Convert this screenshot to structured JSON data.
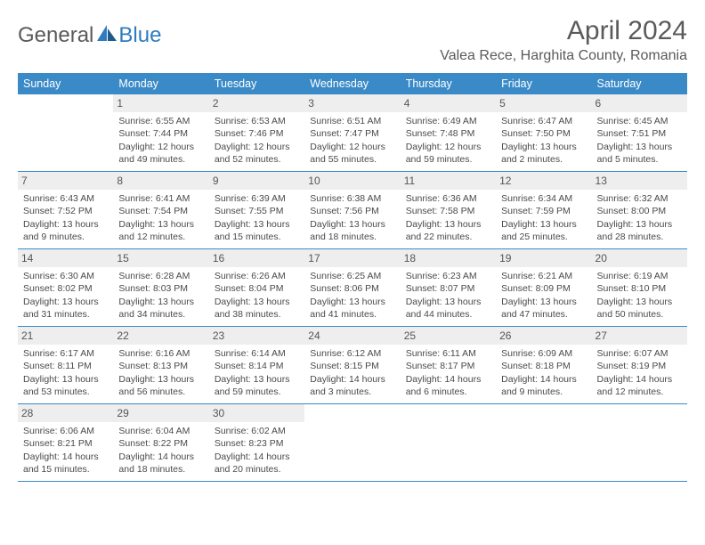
{
  "brand": {
    "part1": "General",
    "part2": "Blue"
  },
  "title": "April 2024",
  "location": "Valea Rece, Harghita County, Romania",
  "colors": {
    "headerBlue": "#3a8ac7",
    "logoBlue": "#2e7cc0",
    "dayBg": "#eeeeee",
    "text": "#4a4a4a",
    "titleGray": "#5a5a5a"
  },
  "dayHeaders": [
    "Sunday",
    "Monday",
    "Tuesday",
    "Wednesday",
    "Thursday",
    "Friday",
    "Saturday"
  ],
  "weeks": [
    [
      {
        "empty": true
      },
      {
        "day": "1",
        "sunrise": "Sunrise: 6:55 AM",
        "sunset": "Sunset: 7:44 PM",
        "dl1": "Daylight: 12 hours",
        "dl2": "and 49 minutes."
      },
      {
        "day": "2",
        "sunrise": "Sunrise: 6:53 AM",
        "sunset": "Sunset: 7:46 PM",
        "dl1": "Daylight: 12 hours",
        "dl2": "and 52 minutes."
      },
      {
        "day": "3",
        "sunrise": "Sunrise: 6:51 AM",
        "sunset": "Sunset: 7:47 PM",
        "dl1": "Daylight: 12 hours",
        "dl2": "and 55 minutes."
      },
      {
        "day": "4",
        "sunrise": "Sunrise: 6:49 AM",
        "sunset": "Sunset: 7:48 PM",
        "dl1": "Daylight: 12 hours",
        "dl2": "and 59 minutes."
      },
      {
        "day": "5",
        "sunrise": "Sunrise: 6:47 AM",
        "sunset": "Sunset: 7:50 PM",
        "dl1": "Daylight: 13 hours",
        "dl2": "and 2 minutes."
      },
      {
        "day": "6",
        "sunrise": "Sunrise: 6:45 AM",
        "sunset": "Sunset: 7:51 PM",
        "dl1": "Daylight: 13 hours",
        "dl2": "and 5 minutes."
      }
    ],
    [
      {
        "day": "7",
        "sunrise": "Sunrise: 6:43 AM",
        "sunset": "Sunset: 7:52 PM",
        "dl1": "Daylight: 13 hours",
        "dl2": "and 9 minutes."
      },
      {
        "day": "8",
        "sunrise": "Sunrise: 6:41 AM",
        "sunset": "Sunset: 7:54 PM",
        "dl1": "Daylight: 13 hours",
        "dl2": "and 12 minutes."
      },
      {
        "day": "9",
        "sunrise": "Sunrise: 6:39 AM",
        "sunset": "Sunset: 7:55 PM",
        "dl1": "Daylight: 13 hours",
        "dl2": "and 15 minutes."
      },
      {
        "day": "10",
        "sunrise": "Sunrise: 6:38 AM",
        "sunset": "Sunset: 7:56 PM",
        "dl1": "Daylight: 13 hours",
        "dl2": "and 18 minutes."
      },
      {
        "day": "11",
        "sunrise": "Sunrise: 6:36 AM",
        "sunset": "Sunset: 7:58 PM",
        "dl1": "Daylight: 13 hours",
        "dl2": "and 22 minutes."
      },
      {
        "day": "12",
        "sunrise": "Sunrise: 6:34 AM",
        "sunset": "Sunset: 7:59 PM",
        "dl1": "Daylight: 13 hours",
        "dl2": "and 25 minutes."
      },
      {
        "day": "13",
        "sunrise": "Sunrise: 6:32 AM",
        "sunset": "Sunset: 8:00 PM",
        "dl1": "Daylight: 13 hours",
        "dl2": "and 28 minutes."
      }
    ],
    [
      {
        "day": "14",
        "sunrise": "Sunrise: 6:30 AM",
        "sunset": "Sunset: 8:02 PM",
        "dl1": "Daylight: 13 hours",
        "dl2": "and 31 minutes."
      },
      {
        "day": "15",
        "sunrise": "Sunrise: 6:28 AM",
        "sunset": "Sunset: 8:03 PM",
        "dl1": "Daylight: 13 hours",
        "dl2": "and 34 minutes."
      },
      {
        "day": "16",
        "sunrise": "Sunrise: 6:26 AM",
        "sunset": "Sunset: 8:04 PM",
        "dl1": "Daylight: 13 hours",
        "dl2": "and 38 minutes."
      },
      {
        "day": "17",
        "sunrise": "Sunrise: 6:25 AM",
        "sunset": "Sunset: 8:06 PM",
        "dl1": "Daylight: 13 hours",
        "dl2": "and 41 minutes."
      },
      {
        "day": "18",
        "sunrise": "Sunrise: 6:23 AM",
        "sunset": "Sunset: 8:07 PM",
        "dl1": "Daylight: 13 hours",
        "dl2": "and 44 minutes."
      },
      {
        "day": "19",
        "sunrise": "Sunrise: 6:21 AM",
        "sunset": "Sunset: 8:09 PM",
        "dl1": "Daylight: 13 hours",
        "dl2": "and 47 minutes."
      },
      {
        "day": "20",
        "sunrise": "Sunrise: 6:19 AM",
        "sunset": "Sunset: 8:10 PM",
        "dl1": "Daylight: 13 hours",
        "dl2": "and 50 minutes."
      }
    ],
    [
      {
        "day": "21",
        "sunrise": "Sunrise: 6:17 AM",
        "sunset": "Sunset: 8:11 PM",
        "dl1": "Daylight: 13 hours",
        "dl2": "and 53 minutes."
      },
      {
        "day": "22",
        "sunrise": "Sunrise: 6:16 AM",
        "sunset": "Sunset: 8:13 PM",
        "dl1": "Daylight: 13 hours",
        "dl2": "and 56 minutes."
      },
      {
        "day": "23",
        "sunrise": "Sunrise: 6:14 AM",
        "sunset": "Sunset: 8:14 PM",
        "dl1": "Daylight: 13 hours",
        "dl2": "and 59 minutes."
      },
      {
        "day": "24",
        "sunrise": "Sunrise: 6:12 AM",
        "sunset": "Sunset: 8:15 PM",
        "dl1": "Daylight: 14 hours",
        "dl2": "and 3 minutes."
      },
      {
        "day": "25",
        "sunrise": "Sunrise: 6:11 AM",
        "sunset": "Sunset: 8:17 PM",
        "dl1": "Daylight: 14 hours",
        "dl2": "and 6 minutes."
      },
      {
        "day": "26",
        "sunrise": "Sunrise: 6:09 AM",
        "sunset": "Sunset: 8:18 PM",
        "dl1": "Daylight: 14 hours",
        "dl2": "and 9 minutes."
      },
      {
        "day": "27",
        "sunrise": "Sunrise: 6:07 AM",
        "sunset": "Sunset: 8:19 PM",
        "dl1": "Daylight: 14 hours",
        "dl2": "and 12 minutes."
      }
    ],
    [
      {
        "day": "28",
        "sunrise": "Sunrise: 6:06 AM",
        "sunset": "Sunset: 8:21 PM",
        "dl1": "Daylight: 14 hours",
        "dl2": "and 15 minutes."
      },
      {
        "day": "29",
        "sunrise": "Sunrise: 6:04 AM",
        "sunset": "Sunset: 8:22 PM",
        "dl1": "Daylight: 14 hours",
        "dl2": "and 18 minutes."
      },
      {
        "day": "30",
        "sunrise": "Sunrise: 6:02 AM",
        "sunset": "Sunset: 8:23 PM",
        "dl1": "Daylight: 14 hours",
        "dl2": "and 20 minutes."
      },
      {
        "empty": true
      },
      {
        "empty": true
      },
      {
        "empty": true
      },
      {
        "empty": true
      }
    ]
  ]
}
